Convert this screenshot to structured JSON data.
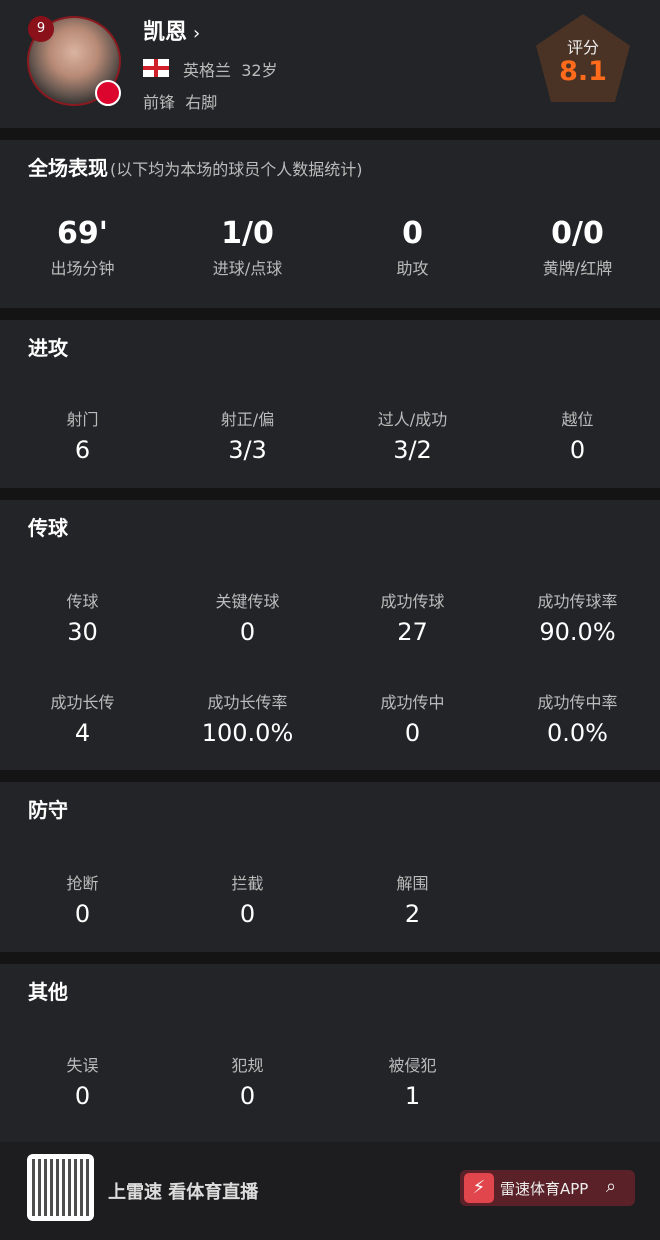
{
  "player": {
    "number": "9",
    "name": "凯恩",
    "nation": "英格兰",
    "age": "32岁",
    "position": "前锋",
    "foot": "右脚",
    "rating_label": "评分",
    "rating": "8.1"
  },
  "summary": {
    "title": "全场表现",
    "subtitle": "(以下均为本场的球员个人数据统计)",
    "stats": [
      {
        "value": "69'",
        "label": "出场分钟"
      },
      {
        "value": "1/0",
        "label": "进球/点球"
      },
      {
        "value": "0",
        "label": "助攻"
      },
      {
        "value": "0/0",
        "label": "黄牌/红牌"
      }
    ]
  },
  "attack": {
    "title": "进攻",
    "stats": [
      {
        "label": "射门",
        "value": "6"
      },
      {
        "label": "射正/偏",
        "value": "3/3"
      },
      {
        "label": "过人/成功",
        "value": "3/2"
      },
      {
        "label": "越位",
        "value": "0"
      }
    ]
  },
  "passing": {
    "title": "传球",
    "stats": [
      {
        "label": "传球",
        "value": "30"
      },
      {
        "label": "关键传球",
        "value": "0"
      },
      {
        "label": "成功传球",
        "value": "27"
      },
      {
        "label": "成功传球率",
        "value": "90.0%"
      },
      {
        "label": "成功长传",
        "value": "4"
      },
      {
        "label": "成功长传率",
        "value": "100.0%"
      },
      {
        "label": "成功传中",
        "value": "0"
      },
      {
        "label": "成功传中率",
        "value": "0.0%"
      }
    ]
  },
  "defense": {
    "title": "防守",
    "stats": [
      {
        "label": "抢断",
        "value": "0"
      },
      {
        "label": "拦截",
        "value": "0"
      },
      {
        "label": "解围",
        "value": "2"
      }
    ]
  },
  "other": {
    "title": "其他",
    "stats": [
      {
        "label": "失误",
        "value": "0"
      },
      {
        "label": "犯规",
        "value": "0"
      },
      {
        "label": "被侵犯",
        "value": "1"
      }
    ]
  },
  "footer": {
    "slogan": "上雷速 看体育直播",
    "app_name": "雷速体育APP",
    "icons": [
      "qr-code",
      "lightning-icon",
      "search-icon"
    ]
  },
  "colors": {
    "rating": "#ff6b1a",
    "background": "#232427",
    "accent": "#e0464c"
  }
}
